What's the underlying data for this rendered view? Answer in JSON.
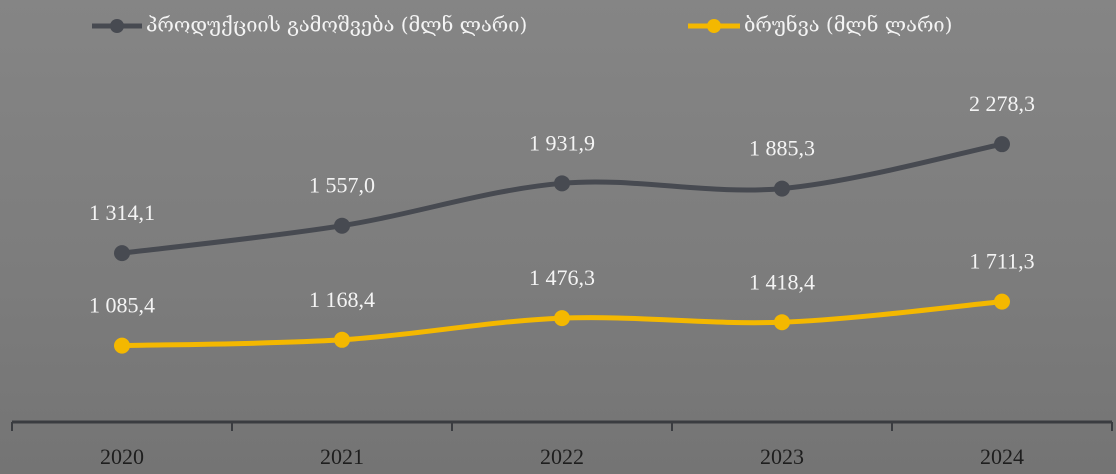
{
  "chart_data": {
    "type": "line",
    "categories": [
      "2020",
      "2021",
      "2022",
      "2023",
      "2024"
    ],
    "series": [
      {
        "name": "პროდუქციის გამოშვება (მლნ ლარი)",
        "color": "#474a51",
        "values": [
          1314.1,
          1557.0,
          1931.9,
          1885.3,
          2278.3
        ],
        "value_labels": [
          "1 314,1",
          "1 557,0",
          "1 931,9",
          "1 885,3",
          "2 278,3"
        ]
      },
      {
        "name": "ბრუნვა (მლნ ლარი)",
        "color": "#f4b800",
        "axis": "y2",
        "values": [
          1085.4,
          1168.4,
          1476.3,
          1418.4,
          1711.3
        ],
        "value_labels": [
          "1 085,4",
          "1 168,4",
          "1 476,3",
          "1 418,4",
          "1 711,3"
        ]
      }
    ],
    "ylim": [
      -180,
      3200
    ],
    "y2lim": [
      0,
      5430
    ],
    "legend": "top"
  }
}
